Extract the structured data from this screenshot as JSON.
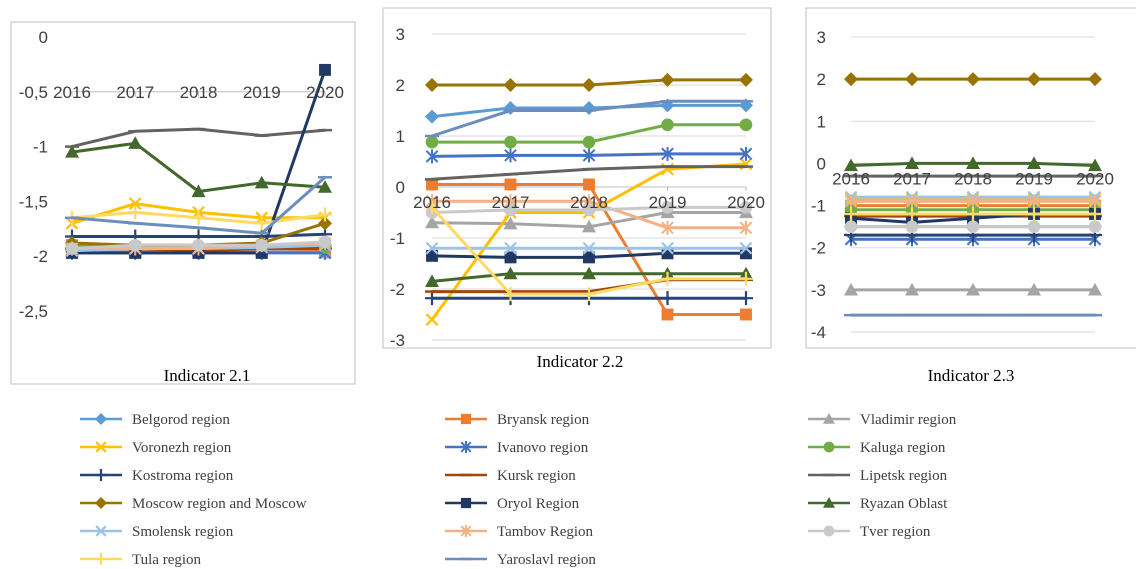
{
  "series_styles": [
    {
      "name": "Belgorod region",
      "color": "#5B9BD5",
      "marker": "diamond"
    },
    {
      "name": "Bryansk region",
      "color": "#ED7D31",
      "marker": "square"
    },
    {
      "name": "Vladimir region",
      "color": "#A5A5A5",
      "marker": "triangle"
    },
    {
      "name": "Voronezh region",
      "color": "#FFC000",
      "marker": "x"
    },
    {
      "name": "Ivanovo region",
      "color": "#4472C4",
      "marker": "star"
    },
    {
      "name": "Kaluga region",
      "color": "#70AD47",
      "marker": "circle"
    },
    {
      "name": "Kostroma region",
      "color": "#264478",
      "marker": "plus"
    },
    {
      "name": "Kursk region",
      "color": "#9E480E",
      "marker": "dash"
    },
    {
      "name": "Lipetsk region",
      "color": "#636363",
      "marker": "dash"
    },
    {
      "name": "Moscow region and Moscow",
      "color": "#997300",
      "marker": "diamond"
    },
    {
      "name": "Oryol Region",
      "color": "#203864",
      "marker": "square"
    },
    {
      "name": "Ryazan Oblast",
      "color": "#43682B",
      "marker": "triangle"
    },
    {
      "name": "Smolensk region",
      "color": "#9DC3E6",
      "marker": "x"
    },
    {
      "name": "Tambov Region",
      "color": "#F4B183",
      "marker": "star"
    },
    {
      "name": "Tver region",
      "color": "#C9C9C9",
      "marker": "circle"
    },
    {
      "name": "Tula region",
      "color": "#FFD966",
      "marker": "plus"
    },
    {
      "name": "Yaroslavl region",
      "color": "#6C8EBF",
      "marker": "dash"
    }
  ],
  "chart_data": [
    {
      "type": "line",
      "title": "Indicator 2.1",
      "x": [
        "2016",
        "2017",
        "2018",
        "2019",
        "2020"
      ],
      "ylim": [
        -2.5,
        0
      ],
      "yticks": [
        "0",
        "-0,5",
        "-1",
        "-1,5",
        "-2",
        "-2,5"
      ],
      "grid": false,
      "series": [
        {
          "name": "Belgorod region",
          "values": [
            -1.95,
            -1.92,
            -1.93,
            -1.95,
            -1.9
          ]
        },
        {
          "name": "Bryansk region",
          "values": [
            -1.9,
            -1.92,
            -1.93,
            -1.93,
            -1.95
          ]
        },
        {
          "name": "Vladimir region",
          "values": [
            -1.95,
            -1.95,
            -1.95,
            -1.95,
            -1.97
          ]
        },
        {
          "name": "Voronezh region",
          "values": [
            -1.7,
            -1.52,
            -1.6,
            -1.65,
            -1.65
          ]
        },
        {
          "name": "Ivanovo region",
          "values": [
            -1.97,
            -1.97,
            -1.97,
            -1.97,
            -1.97
          ]
        },
        {
          "name": "Kaluga region",
          "values": [
            -1.9,
            -1.92,
            -1.93,
            -1.92,
            -1.92
          ]
        },
        {
          "name": "Kostroma region",
          "values": [
            -1.82,
            -1.82,
            -1.82,
            -1.82,
            -1.8
          ]
        },
        {
          "name": "Kursk region",
          "values": [
            -1.93,
            -1.93,
            -1.95,
            -1.93,
            -1.93
          ]
        },
        {
          "name": "Lipetsk region",
          "values": [
            -1.0,
            -0.86,
            -0.84,
            -0.9,
            -0.85
          ]
        },
        {
          "name": "Moscow region and Moscow",
          "values": [
            -1.88,
            -1.9,
            -1.9,
            -1.88,
            -1.7
          ]
        },
        {
          "name": "Oryol Region",
          "values": [
            -1.97,
            -1.97,
            -1.97,
            -1.97,
            -0.3
          ]
        },
        {
          "name": "Ryazan Oblast",
          "values": [
            -1.05,
            -0.97,
            -1.41,
            -1.33,
            -1.37
          ]
        },
        {
          "name": "Smolensk region",
          "values": [
            -1.95,
            -1.93,
            -1.93,
            -1.92,
            -1.9
          ]
        },
        {
          "name": "Tambov Region",
          "values": [
            -1.93,
            -1.93,
            -1.93,
            -1.9,
            -1.88
          ]
        },
        {
          "name": "Tver region",
          "values": [
            -1.93,
            -1.9,
            -1.9,
            -1.9,
            -1.87
          ]
        },
        {
          "name": "Tula region",
          "values": [
            -1.65,
            -1.6,
            -1.65,
            -1.7,
            -1.62
          ]
        },
        {
          "name": "Yaroslavl region",
          "values": [
            -1.65,
            -1.7,
            -1.74,
            -1.79,
            -1.28
          ]
        }
      ]
    },
    {
      "type": "line",
      "title": "Indicator 2.2",
      "x": [
        "2016",
        "2017",
        "2018",
        "2019",
        "2020"
      ],
      "ylim": [
        -3,
        3
      ],
      "yticks": [
        "3",
        "2",
        "1",
        "0",
        "-1",
        "-2",
        "-3"
      ],
      "grid": true,
      "series": [
        {
          "name": "Belgorod region",
          "values": [
            1.38,
            1.55,
            1.55,
            1.6,
            1.6
          ]
        },
        {
          "name": "Bryansk region",
          "values": [
            0.05,
            0.05,
            0.05,
            -2.5,
            -2.5
          ]
        },
        {
          "name": "Vladimir region",
          "values": [
            -0.7,
            -0.72,
            -0.78,
            -0.5,
            -0.5
          ]
        },
        {
          "name": "Voronezh region",
          "values": [
            -2.6,
            -0.5,
            -0.5,
            0.35,
            0.45
          ]
        },
        {
          "name": "Ivanovo region",
          "values": [
            0.6,
            0.62,
            0.62,
            0.65,
            0.65
          ]
        },
        {
          "name": "Kaluga region",
          "values": [
            0.88,
            0.88,
            0.88,
            1.22,
            1.22
          ]
        },
        {
          "name": "Kostroma region",
          "values": [
            -2.18,
            -2.18,
            -2.18,
            -2.18,
            -2.18
          ]
        },
        {
          "name": "Kursk region",
          "values": [
            -2.05,
            -2.05,
            -2.05,
            -1.82,
            -1.82
          ]
        },
        {
          "name": "Lipetsk region",
          "values": [
            0.15,
            0.25,
            0.35,
            0.4,
            0.4
          ]
        },
        {
          "name": "Moscow region and Moscow",
          "values": [
            2.0,
            2.0,
            2.0,
            2.1,
            2.1
          ]
        },
        {
          "name": "Oryol Region",
          "values": [
            -1.35,
            -1.38,
            -1.38,
            -1.3,
            -1.3
          ]
        },
        {
          "name": "Ryazan Oblast",
          "values": [
            -1.85,
            -1.7,
            -1.7,
            -1.7,
            -1.7
          ]
        },
        {
          "name": "Smolensk region",
          "values": [
            -1.2,
            -1.2,
            -1.2,
            -1.2,
            -1.2
          ]
        },
        {
          "name": "Tambov Region",
          "values": [
            -0.28,
            -0.28,
            -0.28,
            -0.8,
            -0.8
          ]
        },
        {
          "name": "Tver region",
          "values": [
            -0.5,
            -0.45,
            -0.45,
            -0.4,
            -0.4
          ]
        },
        {
          "name": "Tula region",
          "values": [
            -0.4,
            -2.1,
            -2.1,
            -1.8,
            -1.8
          ]
        },
        {
          "name": "Yaroslavl region",
          "values": [
            1.0,
            1.5,
            1.5,
            1.68,
            1.68
          ]
        }
      ]
    },
    {
      "type": "line",
      "title": "Indicator 2.3",
      "x": [
        "2016",
        "2017",
        "2018",
        "2019",
        "2020"
      ],
      "ylim": [
        -4,
        3
      ],
      "yticks": [
        "3",
        "2",
        "1",
        "0",
        "-1",
        "-2",
        "-3",
        "-4"
      ],
      "grid": true,
      "series": [
        {
          "name": "Belgorod region",
          "values": [
            -1.5,
            -1.5,
            -1.5,
            -1.5,
            -1.5
          ]
        },
        {
          "name": "Bryansk region",
          "values": [
            -1.0,
            -1.0,
            -1.0,
            -1.0,
            -1.0
          ]
        },
        {
          "name": "Vladimir region",
          "values": [
            -3.0,
            -3.0,
            -3.0,
            -3.0,
            -3.0
          ]
        },
        {
          "name": "Voronezh region",
          "values": [
            -0.85,
            -0.85,
            -0.85,
            -0.85,
            -0.85
          ]
        },
        {
          "name": "Ivanovo region",
          "values": [
            -1.8,
            -1.8,
            -1.8,
            -1.8,
            -1.8
          ]
        },
        {
          "name": "Kaluga region",
          "values": [
            -1.1,
            -1.1,
            -1.1,
            -1.1,
            -1.1
          ]
        },
        {
          "name": "Kostroma region",
          "values": [
            -1.7,
            -1.7,
            -1.7,
            -1.7,
            -1.7
          ]
        },
        {
          "name": "Kursk region",
          "values": [
            -1.25,
            -1.25,
            -1.25,
            -1.25,
            -1.25
          ]
        },
        {
          "name": "Lipetsk region",
          "values": [
            -0.3,
            -0.3,
            -0.3,
            -0.3,
            -0.3
          ]
        },
        {
          "name": "Moscow region and Moscow",
          "values": [
            2.0,
            2.0,
            2.0,
            2.0,
            2.0
          ]
        },
        {
          "name": "Oryol Region",
          "values": [
            -1.3,
            -1.4,
            -1.3,
            -1.2,
            -1.2
          ]
        },
        {
          "name": "Ryazan Oblast",
          "values": [
            -0.05,
            0.0,
            0.0,
            0.0,
            -0.05
          ]
        },
        {
          "name": "Smolensk region",
          "values": [
            -0.8,
            -0.8,
            -0.8,
            -0.8,
            -0.8
          ]
        },
        {
          "name": "Tambov Region",
          "values": [
            -0.9,
            -0.9,
            -0.9,
            -0.9,
            -0.9
          ]
        },
        {
          "name": "Tver region",
          "values": [
            -1.5,
            -1.5,
            -1.5,
            -1.5,
            -1.5
          ]
        },
        {
          "name": "Tula region",
          "values": [
            -1.2,
            -1.2,
            -1.2,
            -1.2,
            -1.2
          ]
        },
        {
          "name": "Yaroslavl region",
          "values": [
            -3.6,
            -3.6,
            -3.6,
            -3.6,
            -3.6
          ]
        }
      ]
    }
  ]
}
